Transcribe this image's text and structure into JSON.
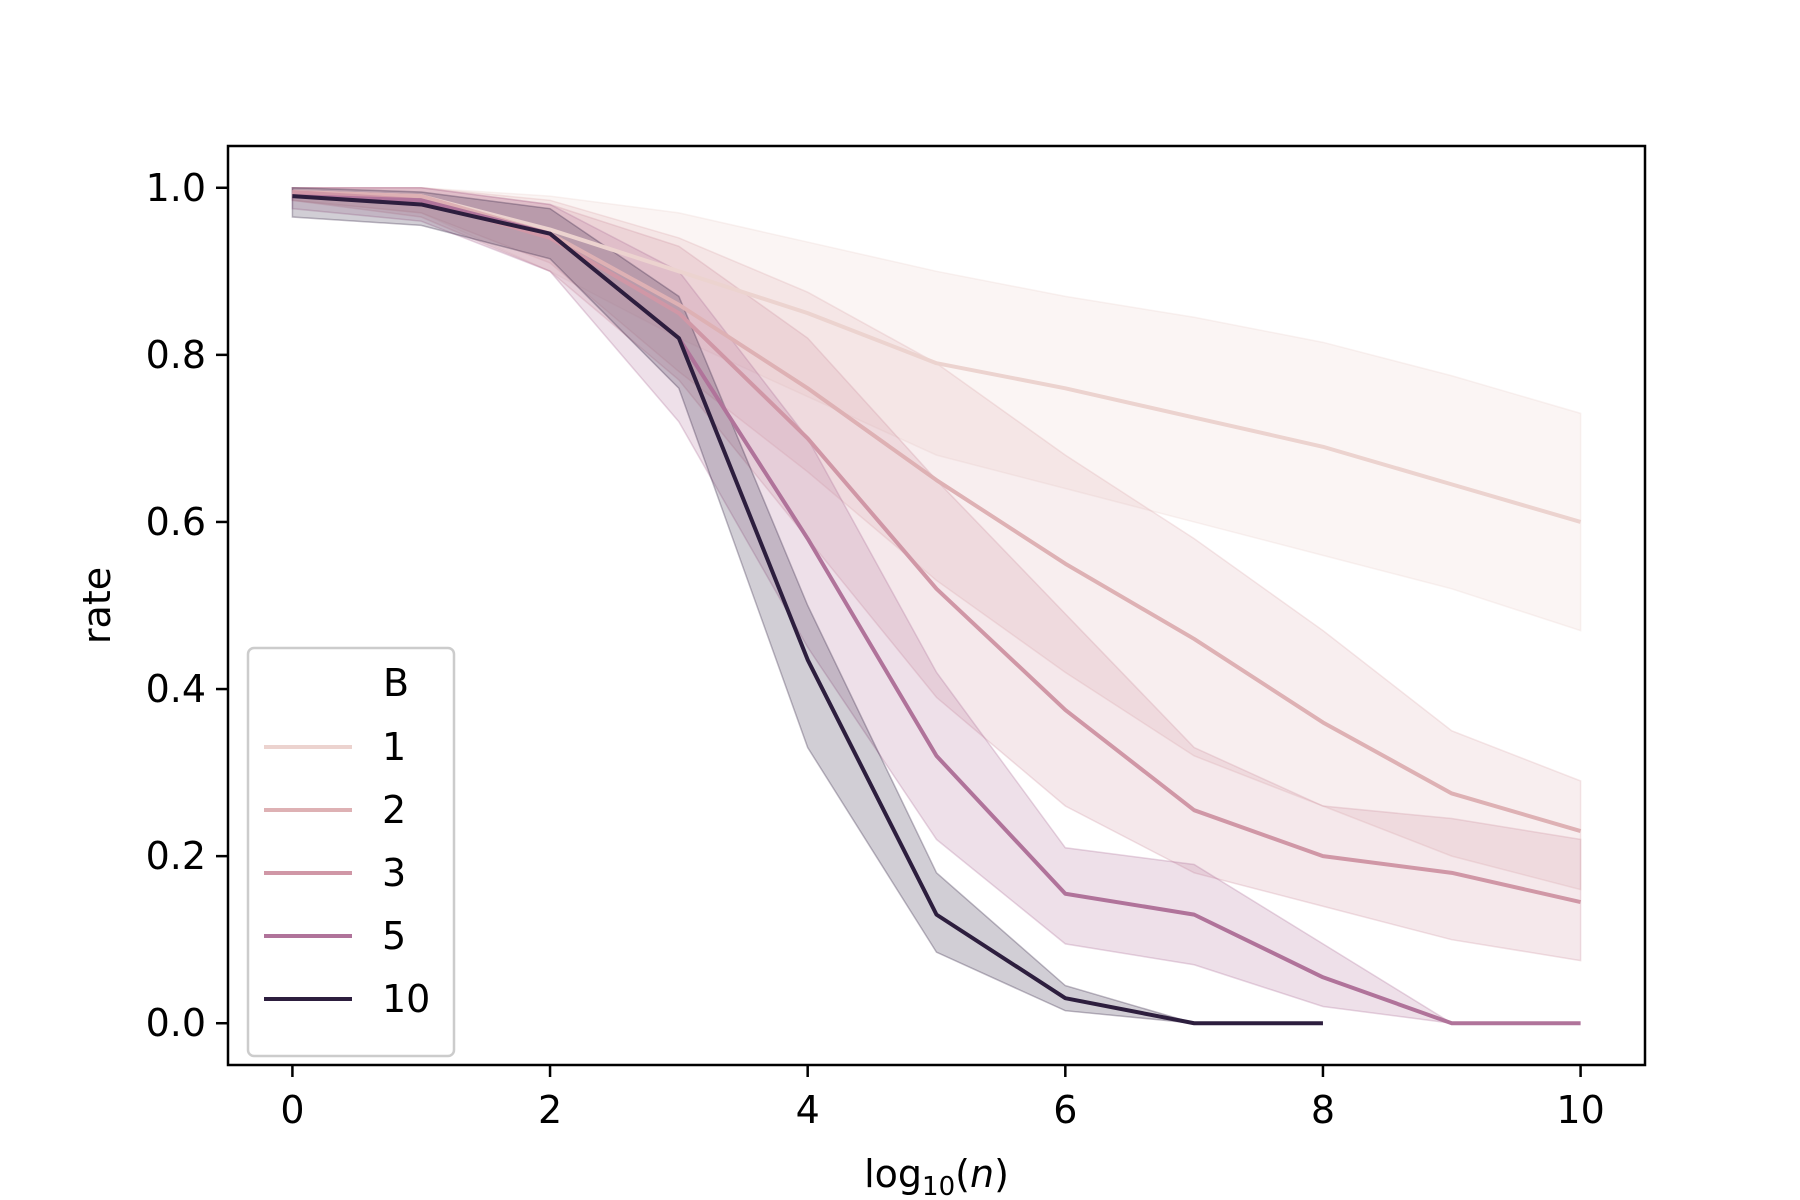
{
  "chart_data": {
    "type": "line",
    "title": "",
    "xlabel": "log10(n)",
    "xlabel_parts": {
      "base": "log",
      "sub": "10",
      "open": "(",
      "var": "n",
      "close": ")"
    },
    "ylabel": "rate",
    "xlim": [
      -0.5,
      10.5
    ],
    "ylim": [
      -0.05,
      1.05
    ],
    "xticks": [
      0,
      2,
      4,
      6,
      8,
      10
    ],
    "xtick_labels": [
      "0",
      "2",
      "4",
      "6",
      "8",
      "10"
    ],
    "yticks": [
      0.0,
      0.2,
      0.4,
      0.6,
      0.8,
      1.0
    ],
    "ytick_labels": [
      "0.0",
      "0.2",
      "0.4",
      "0.6",
      "0.8",
      "1.0"
    ],
    "grid": false,
    "legend": {
      "title": "B",
      "placement": "lower-left"
    },
    "series": [
      {
        "name": "1",
        "color": "#ecd3cf",
        "x": [
          0,
          1,
          2,
          3,
          4,
          5,
          6,
          7,
          8,
          9,
          10
        ],
        "y": [
          0.995,
          0.99,
          0.95,
          0.9,
          0.85,
          0.79,
          0.76,
          0.725,
          0.69,
          0.645,
          0.6
        ],
        "lower": [
          0.985,
          0.97,
          0.9,
          0.82,
          0.75,
          0.68,
          0.64,
          0.6,
          0.56,
          0.52,
          0.47
        ],
        "upper": [
          1.0,
          1.0,
          0.99,
          0.97,
          0.935,
          0.9,
          0.87,
          0.845,
          0.815,
          0.775,
          0.73
        ]
      },
      {
        "name": "2",
        "color": "#deb1b4",
        "x": [
          0,
          1,
          2,
          3,
          4,
          5,
          6,
          7,
          8,
          9,
          10
        ],
        "y": [
          0.995,
          0.99,
          0.945,
          0.86,
          0.76,
          0.65,
          0.55,
          0.46,
          0.36,
          0.275,
          0.23
        ],
        "lower": [
          0.985,
          0.97,
          0.91,
          0.78,
          0.66,
          0.53,
          0.42,
          0.32,
          0.26,
          0.2,
          0.16
        ],
        "upper": [
          1.0,
          1.0,
          0.985,
          0.94,
          0.875,
          0.79,
          0.68,
          0.58,
          0.47,
          0.35,
          0.29
        ]
      },
      {
        "name": "3",
        "color": "#d097a6",
        "x": [
          0,
          1,
          2,
          3,
          4,
          5,
          6,
          7,
          8,
          9,
          10
        ],
        "y": [
          0.995,
          0.985,
          0.94,
          0.85,
          0.7,
          0.52,
          0.375,
          0.255,
          0.2,
          0.18,
          0.145
        ],
        "lower": [
          0.985,
          0.965,
          0.9,
          0.77,
          0.58,
          0.39,
          0.26,
          0.18,
          0.14,
          0.1,
          0.075
        ],
        "upper": [
          1.0,
          1.0,
          0.98,
          0.93,
          0.82,
          0.65,
          0.49,
          0.33,
          0.26,
          0.245,
          0.22
        ]
      },
      {
        "name": "5",
        "color": "#b0739a",
        "x": [
          0,
          1,
          2,
          3,
          4,
          5,
          6,
          7,
          8,
          9,
          10
        ],
        "y": [
          0.99,
          0.985,
          0.945,
          0.82,
          0.58,
          0.32,
          0.155,
          0.13,
          0.055,
          0.0,
          0.0
        ],
        "lower": [
          0.975,
          0.96,
          0.9,
          0.72,
          0.45,
          0.22,
          0.095,
          0.07,
          0.02,
          0.0,
          0.0
        ],
        "upper": [
          1.0,
          1.0,
          0.98,
          0.9,
          0.7,
          0.42,
          0.21,
          0.19,
          0.095,
          0.0,
          0.0
        ]
      },
      {
        "name": "10",
        "color": "#2d1e3e",
        "x": [
          0,
          1,
          2,
          3,
          4,
          5,
          6,
          7,
          8
        ],
        "y": [
          0.99,
          0.98,
          0.945,
          0.82,
          0.435,
          0.13,
          0.03,
          0.0,
          0.0
        ],
        "lower": [
          0.965,
          0.955,
          0.915,
          0.76,
          0.33,
          0.085,
          0.015,
          0.0,
          0.0
        ],
        "upper": [
          1.0,
          0.995,
          0.975,
          0.87,
          0.5,
          0.18,
          0.045,
          0.0,
          0.0
        ]
      }
    ]
  }
}
